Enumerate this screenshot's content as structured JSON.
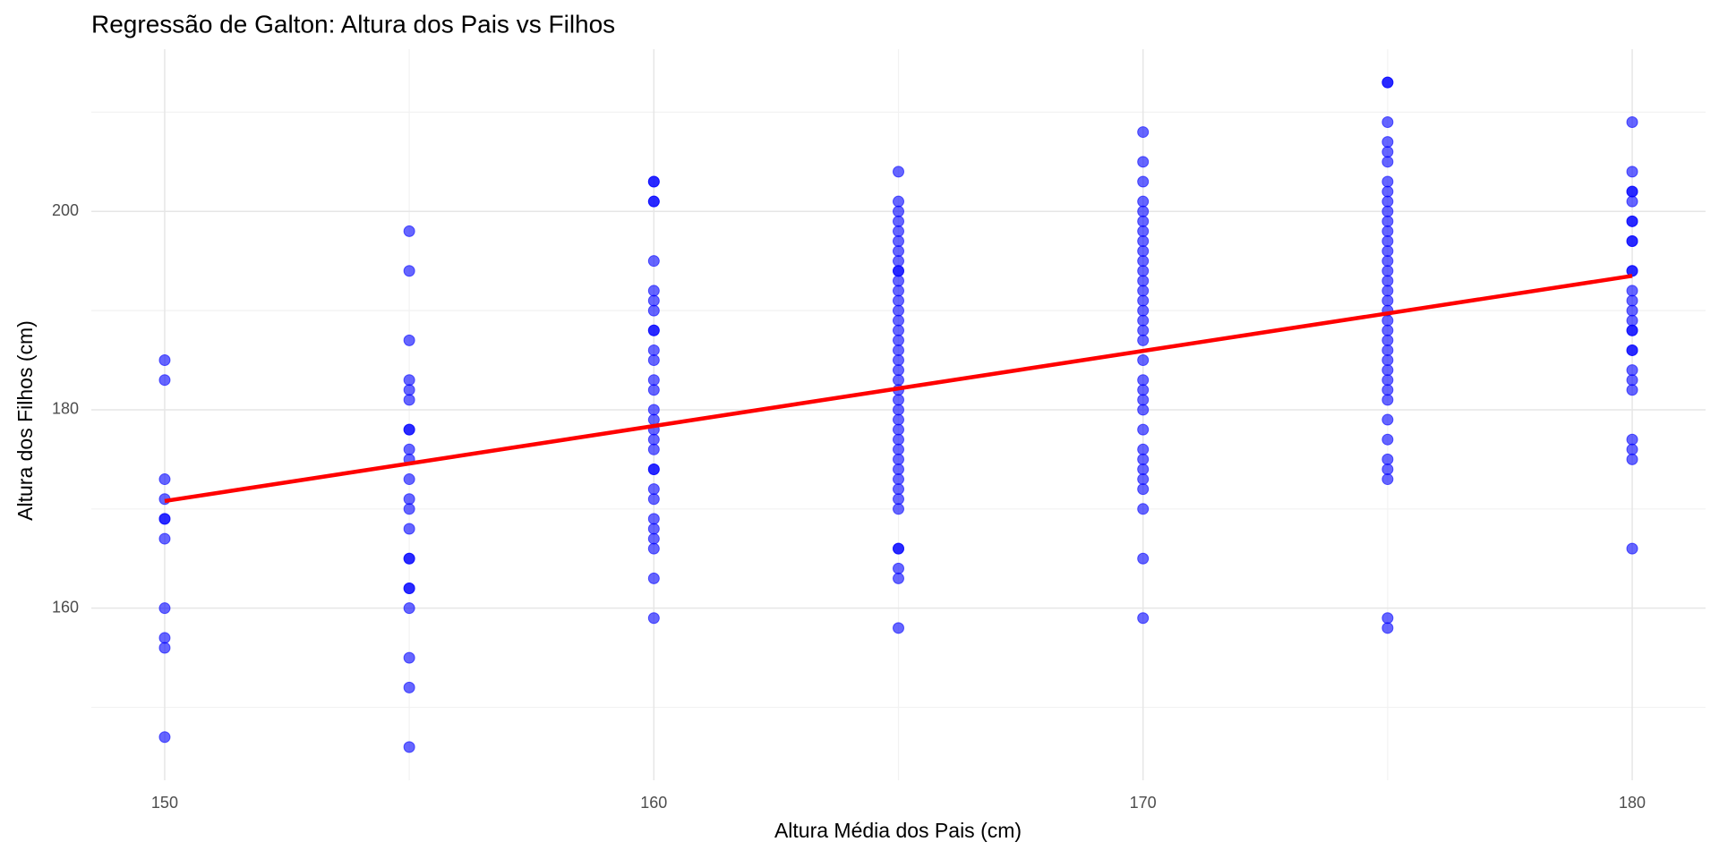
{
  "chart_data": {
    "type": "scatter",
    "title": "Regressão de Galton: Altura dos Pais vs Filhos",
    "x_label": "Altura Média dos Pais (cm)",
    "y_label": "Altura dos Filhos (cm)",
    "xlim": [
      148.5,
      181.5
    ],
    "ylim": [
      142.65,
      216.35
    ],
    "xticks": [
      150,
      160,
      170,
      180
    ],
    "yticks": [
      160,
      180,
      200
    ],
    "grid": true,
    "minor_grid": true,
    "point_color": "#0000ff",
    "groups": [
      {
        "x": 150,
        "values": [
          185,
          183,
          173,
          171,
          169,
          169,
          167,
          160,
          157,
          156,
          147
        ]
      },
      {
        "x": 155,
        "values": [
          198,
          194,
          187,
          183,
          182,
          181,
          178,
          178,
          176,
          175,
          173,
          171,
          170,
          168,
          165,
          165,
          162,
          162,
          160,
          155,
          152,
          146
        ]
      },
      {
        "x": 160,
        "values": [
          203,
          203,
          201,
          201,
          195,
          192,
          191,
          190,
          188,
          188,
          186,
          185,
          183,
          182,
          180,
          179,
          178,
          177,
          176,
          174,
          174,
          172,
          171,
          169,
          168,
          167,
          166,
          163,
          159
        ]
      },
      {
        "x": 165,
        "values": [
          204,
          201,
          200,
          199,
          198,
          197,
          196,
          195,
          194,
          194,
          193,
          192,
          191,
          190,
          189,
          188,
          187,
          186,
          185,
          184,
          183,
          182,
          181,
          180,
          179,
          178,
          177,
          176,
          175,
          174,
          173,
          172,
          171,
          170,
          166,
          166,
          164,
          163,
          158
        ]
      },
      {
        "x": 170,
        "values": [
          208,
          205,
          203,
          201,
          200,
          199,
          198,
          197,
          196,
          195,
          194,
          193,
          192,
          191,
          190,
          189,
          188,
          187,
          185,
          183,
          182,
          181,
          180,
          178,
          176,
          175,
          174,
          173,
          172,
          170,
          165,
          159
        ]
      },
      {
        "x": 175,
        "values": [
          213,
          213,
          209,
          207,
          206,
          205,
          203,
          202,
          201,
          200,
          199,
          198,
          197,
          196,
          195,
          194,
          193,
          192,
          191,
          190,
          189,
          188,
          187,
          186,
          185,
          184,
          183,
          182,
          181,
          179,
          177,
          175,
          174,
          173,
          159,
          158
        ]
      },
      {
        "x": 180,
        "values": [
          209,
          204,
          202,
          202,
          201,
          199,
          199,
          197,
          197,
          194,
          194,
          192,
          191,
          190,
          189,
          188,
          188,
          186,
          186,
          184,
          183,
          182,
          177,
          176,
          175,
          166
        ]
      }
    ],
    "regression_line": {
      "x": [
        150,
        180
      ],
      "values": [
        170.8,
        193.5
      ],
      "color": "#ff0000"
    }
  }
}
